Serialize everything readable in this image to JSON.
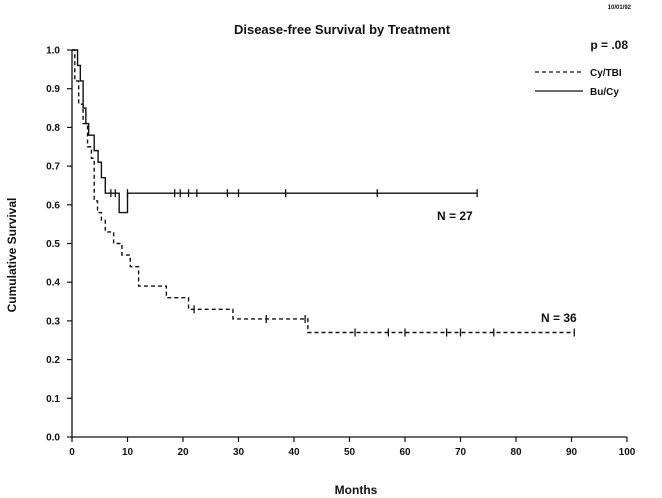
{
  "chart_data": {
    "type": "line",
    "title": "Disease-free Survival by Treatment",
    "xlabel": "Months",
    "ylabel": "Cumulative Survival",
    "xlim": [
      0,
      100
    ],
    "ylim": [
      0,
      1.0
    ],
    "xticks": [
      "0",
      "10",
      "20",
      "30",
      "40",
      "50",
      "60",
      "70",
      "80",
      "90",
      "100"
    ],
    "yticks": [
      "0.0",
      "0.1",
      "0.2",
      "0.3",
      "0.4",
      "0.5",
      "0.6",
      "0.7",
      "0.8",
      "0.9",
      "1.0"
    ],
    "grid": false,
    "legend_position": "top-right",
    "pvalue_label": "p = .08",
    "date_stamp": "10/01/92",
    "series": [
      {
        "name": "Cy/TBI",
        "style": "dashed",
        "n_label": "N = 36",
        "steps": [
          [
            0,
            1.0
          ],
          [
            0.5,
            0.92
          ],
          [
            1.2,
            0.86
          ],
          [
            2.0,
            0.81
          ],
          [
            2.8,
            0.75
          ],
          [
            3.5,
            0.72
          ],
          [
            4.0,
            0.61
          ],
          [
            4.6,
            0.58
          ],
          [
            5.3,
            0.56
          ],
          [
            6.0,
            0.53
          ],
          [
            7.5,
            0.5
          ],
          [
            9.0,
            0.47
          ],
          [
            10.5,
            0.44
          ],
          [
            12.0,
            0.39
          ],
          [
            17.0,
            0.36
          ],
          [
            21.0,
            0.33
          ],
          [
            29.0,
            0.305
          ],
          [
            42.5,
            0.27
          ],
          [
            90.5,
            0.27
          ]
        ],
        "censored": [
          22,
          35,
          42,
          51,
          57,
          60,
          67.5,
          70,
          76,
          90.5
        ]
      },
      {
        "name": "Bu/Cy",
        "style": "solid",
        "n_label": "N = 27",
        "steps": [
          [
            0,
            1.0
          ],
          [
            1.0,
            0.96
          ],
          [
            1.5,
            0.92
          ],
          [
            2.0,
            0.85
          ],
          [
            2.5,
            0.81
          ],
          [
            3.0,
            0.78
          ],
          [
            4.0,
            0.74
          ],
          [
            4.7,
            0.71
          ],
          [
            5.3,
            0.67
          ],
          [
            6.0,
            0.63
          ],
          [
            8.5,
            0.58
          ],
          [
            10.0,
            0.63
          ],
          [
            73.0,
            0.63
          ]
        ],
        "censored": [
          7,
          7.8,
          10,
          18.5,
          19.5,
          21,
          22.5,
          28,
          30,
          38.5,
          55,
          73
        ]
      }
    ]
  }
}
